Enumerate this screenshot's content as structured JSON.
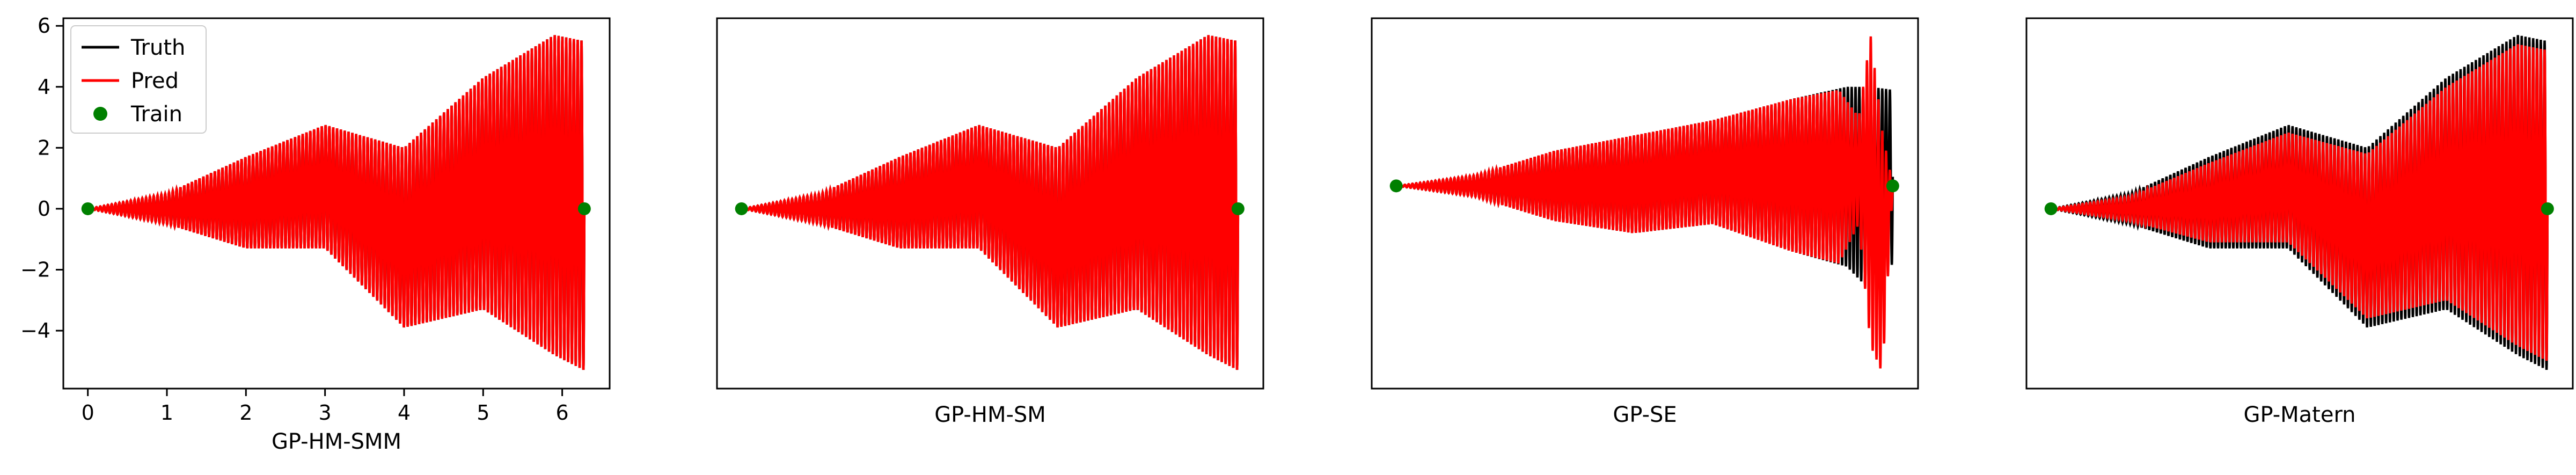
{
  "chart_data": [
    {
      "type": "line",
      "xlabel": "GP-HM-SMM",
      "xlim": [
        -0.31,
        6.6
      ],
      "ylim": [
        -5.9,
        6.25
      ],
      "xticks": [
        0,
        1,
        2,
        3,
        4,
        5,
        6
      ],
      "yticks": [
        -4,
        -2,
        0,
        2,
        4,
        6
      ],
      "show_axes_ticks": true,
      "legend": {
        "placement": "top-left",
        "entries": [
          {
            "label": "Truth",
            "color": "#000000",
            "kind": "line"
          },
          {
            "label": "Pred",
            "color": "#ff0000",
            "kind": "line"
          },
          {
            "label": "Train",
            "color": "#008000",
            "kind": "marker"
          }
        ]
      },
      "series": [
        {
          "name": "Truth",
          "color": "#000000",
          "envelope_x": [
            0,
            1,
            2,
            3,
            4,
            5,
            5.9,
            6.28
          ],
          "envelope_upper": [
            0,
            0.5,
            1.7,
            2.75,
            2.0,
            4.3,
            5.7,
            5.5
          ],
          "envelope_lower": [
            0,
            -0.5,
            -1.3,
            -1.3,
            -3.9,
            -3.3,
            -4.8,
            -5.3
          ],
          "cycles": 130
        },
        {
          "name": "Pred",
          "color": "#ff0000",
          "envelope_x": [
            0,
            1,
            2,
            3,
            4,
            5,
            5.9,
            6.28
          ],
          "envelope_upper": [
            0,
            0.5,
            1.7,
            2.75,
            2.0,
            4.3,
            5.7,
            5.5
          ],
          "envelope_lower": [
            0,
            -0.5,
            -1.3,
            -1.3,
            -3.9,
            -3.3,
            -4.8,
            -5.3
          ],
          "cycles": 130
        },
        {
          "name": "Train",
          "color": "#008000",
          "kind": "scatter",
          "x": [
            0,
            6.28
          ],
          "y": [
            0,
            0
          ]
        }
      ]
    },
    {
      "type": "line",
      "xlabel": "GP-HM-SM",
      "xlim": [
        -0.31,
        6.6
      ],
      "ylim": [
        -5.9,
        6.25
      ],
      "show_axes_ticks": false,
      "series": [
        {
          "name": "Truth",
          "color": "#000000",
          "envelope_x": [
            0,
            1,
            2,
            3,
            4,
            5,
            5.9,
            6.28
          ],
          "envelope_upper": [
            0,
            0.5,
            1.7,
            2.75,
            2.0,
            4.3,
            5.7,
            5.5
          ],
          "envelope_lower": [
            0,
            -0.5,
            -1.3,
            -1.3,
            -3.9,
            -3.3,
            -4.8,
            -5.3
          ],
          "cycles": 130
        },
        {
          "name": "Pred",
          "color": "#ff0000",
          "envelope_x": [
            0,
            1,
            2,
            3,
            4,
            5,
            5.9,
            6.28
          ],
          "envelope_upper": [
            0,
            0.5,
            1.7,
            2.75,
            2.0,
            4.3,
            5.7,
            5.5
          ],
          "envelope_lower": [
            0,
            -0.5,
            -1.3,
            -1.3,
            -3.9,
            -3.3,
            -4.8,
            -5.3
          ],
          "cycles": 130
        },
        {
          "name": "Train",
          "color": "#008000",
          "kind": "scatter",
          "x": [
            0,
            6.28
          ],
          "y": [
            0,
            0
          ]
        }
      ]
    },
    {
      "type": "line",
      "xlabel": "GP-SE",
      "xlim": [
        -0.31,
        6.6
      ],
      "ylim": [
        -5.9,
        6.25
      ],
      "show_axes_ticks": false,
      "series": [
        {
          "name": "Truth",
          "color": "#000000",
          "envelope_x": [
            0,
            1,
            2,
            3,
            4,
            5,
            5.7,
            6.0,
            6.28
          ],
          "envelope_upper": [
            0.75,
            1.1,
            1.9,
            2.4,
            2.9,
            3.6,
            4.0,
            4.0,
            3.9
          ],
          "envelope_lower": [
            0.75,
            0.4,
            -0.4,
            -0.8,
            -0.5,
            -1.4,
            -1.9,
            -2.7,
            -1.8
          ],
          "cycles": 130
        },
        {
          "name": "Pred",
          "color": "#ff0000",
          "envelope_x": [
            0,
            1,
            2,
            3,
            4,
            5,
            5.6,
            5.85,
            6.0,
            6.15,
            6.28
          ],
          "envelope_upper": [
            0.75,
            1.1,
            1.9,
            2.4,
            2.9,
            3.6,
            3.9,
            3.0,
            5.7,
            2.5,
            0.8
          ],
          "envelope_lower": [
            0.75,
            0.4,
            -0.4,
            -0.8,
            -0.5,
            -1.4,
            -1.8,
            -0.5,
            -4.5,
            -5.4,
            0.6
          ],
          "cycles": 130
        },
        {
          "name": "Train",
          "color": "#008000",
          "kind": "scatter",
          "x": [
            0,
            6.28
          ],
          "y": [
            0.75,
            0.75
          ]
        }
      ]
    },
    {
      "type": "line",
      "xlabel": "GP-Matern",
      "xlim": [
        -0.31,
        6.6
      ],
      "ylim": [
        -5.9,
        6.25
      ],
      "show_axes_ticks": false,
      "series": [
        {
          "name": "Truth",
          "color": "#000000",
          "envelope_x": [
            0,
            1,
            2,
            3,
            4,
            5,
            5.9,
            6.28
          ],
          "envelope_upper": [
            0,
            0.5,
            1.7,
            2.75,
            2.0,
            4.3,
            5.7,
            5.5
          ],
          "envelope_lower": [
            0,
            -0.5,
            -1.3,
            -1.3,
            -3.9,
            -3.3,
            -4.8,
            -5.3
          ],
          "cycles": 130
        },
        {
          "name": "Pred",
          "color": "#ff0000",
          "envelope_x": [
            0,
            1,
            2,
            3,
            4,
            5,
            5.9,
            6.28
          ],
          "envelope_upper": [
            0,
            0.4,
            1.5,
            2.5,
            1.8,
            4.0,
            5.4,
            5.2
          ],
          "envelope_lower": [
            0,
            -0.4,
            -1.1,
            -1.1,
            -3.6,
            -3.0,
            -4.5,
            -5.0
          ],
          "cycles": 130
        },
        {
          "name": "Train",
          "color": "#008000",
          "kind": "scatter",
          "x": [
            0,
            6.28
          ],
          "y": [
            0,
            0
          ]
        }
      ]
    }
  ]
}
